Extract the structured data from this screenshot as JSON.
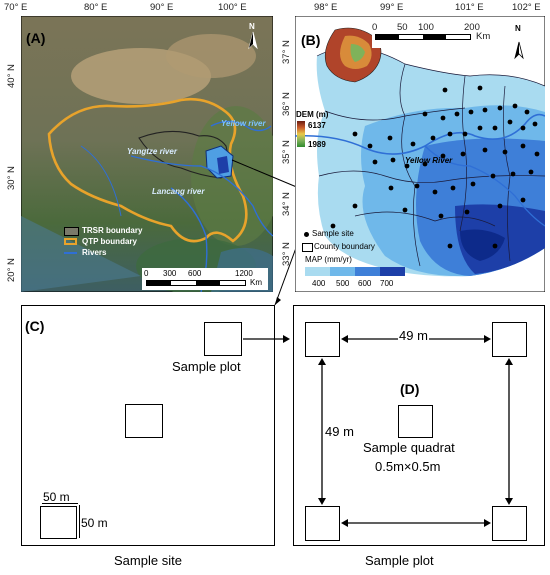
{
  "panelA": {
    "label": "(A)",
    "top_ticks": [
      "70° E",
      "80° E",
      "90° E",
      "100° E"
    ],
    "left_ticks": [
      "40° N",
      "30° N",
      "20° N"
    ],
    "rivers": {
      "yellow": "Yellow river",
      "yangtze": "Yangtze river",
      "lancang": "Lancang river"
    },
    "legend": {
      "trsr": "TRSR boundary",
      "qtp": "QTP boundary",
      "rivers": "Rivers"
    },
    "scale": {
      "ticks": [
        "0",
        "300",
        "600",
        "1200"
      ],
      "unit": "Km"
    },
    "north": "N"
  },
  "panelB": {
    "label": "(B)",
    "top_ticks": [
      "98° E",
      "99° E",
      "101° E",
      "102° E"
    ],
    "left_ticks": [
      "37° N",
      "36° N",
      "35° N",
      "34° N",
      "33° N"
    ],
    "dem": {
      "title": "DEM (m)",
      "max": "6137",
      "min": "1989"
    },
    "river": "Yellow River",
    "legend": {
      "site": "Sample site",
      "county": "County boundary"
    },
    "map_title": "MAP (mm/yr)",
    "map_ticks": [
      "400",
      "500",
      "600",
      "700"
    ],
    "scale": {
      "ticks": [
        "0",
        "50",
        "100",
        "200"
      ],
      "unit": "Km"
    },
    "north": "N"
  },
  "panelC": {
    "label": "(C)",
    "plot_label": "Sample plot",
    "dim_h": "50 m",
    "dim_v": "50 m",
    "caption": "Sample site"
  },
  "panelD": {
    "label": "(D)",
    "dist_h": "49 m",
    "dist_v": "49 m",
    "quadrat_line1": "Sample quadrat",
    "quadrat_line2": "0.5m×0.5m",
    "caption": "Sample plot"
  },
  "colors": {
    "qtp": "#e8a32b",
    "river": "#2f6fd6",
    "map_dark": "#1d3fa8",
    "map_light": "#a9dbf0"
  }
}
